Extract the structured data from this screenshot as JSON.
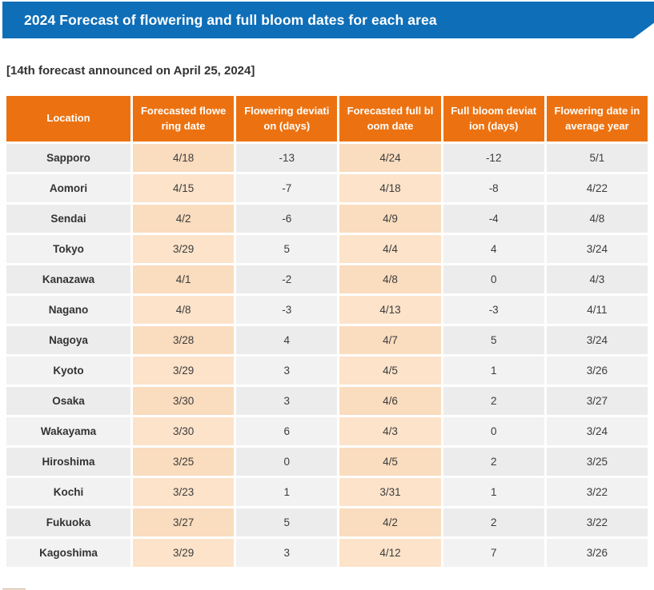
{
  "banner": {
    "title": "2024 Forecast of flowering and full bloom dates for each area",
    "bg_color": "#0e6eb8",
    "text_color": "#ffffff"
  },
  "subtitle": "[14th forecast announced on April 25, 2024]",
  "colors": {
    "header_orange": "#ec7211",
    "peach_cell": "#fbdfc2",
    "gray_cell_dark": "#ececec",
    "gray_cell_light": "#f2f2f2"
  },
  "table": {
    "columns": [
      "Location",
      "Forecasted flowering date",
      "Flowering deviation (days)",
      "Forecasted full bloom date",
      "Full bloom deviation (days)",
      "Flowering date in average year"
    ],
    "rows": [
      {
        "location": "Sapporo",
        "flowering_date": "4/18",
        "flowering_deviation": "-13",
        "full_bloom_date": "4/24",
        "full_bloom_deviation": "-12",
        "average_year_date": "5/1"
      },
      {
        "location": "Aomori",
        "flowering_date": "4/15",
        "flowering_deviation": "-7",
        "full_bloom_date": "4/18",
        "full_bloom_deviation": "-8",
        "average_year_date": "4/22"
      },
      {
        "location": "Sendai",
        "flowering_date": "4/2",
        "flowering_deviation": "-6",
        "full_bloom_date": "4/9",
        "full_bloom_deviation": "-4",
        "average_year_date": "4/8"
      },
      {
        "location": "Tokyo",
        "flowering_date": "3/29",
        "flowering_deviation": "5",
        "full_bloom_date": "4/4",
        "full_bloom_deviation": "4",
        "average_year_date": "3/24"
      },
      {
        "location": "Kanazawa",
        "flowering_date": "4/1",
        "flowering_deviation": "-2",
        "full_bloom_date": "4/8",
        "full_bloom_deviation": "0",
        "average_year_date": "4/3"
      },
      {
        "location": "Nagano",
        "flowering_date": "4/8",
        "flowering_deviation": "-3",
        "full_bloom_date": "4/13",
        "full_bloom_deviation": "-3",
        "average_year_date": "4/11"
      },
      {
        "location": "Nagoya",
        "flowering_date": "3/28",
        "flowering_deviation": "4",
        "full_bloom_date": "4/7",
        "full_bloom_deviation": "5",
        "average_year_date": "3/24"
      },
      {
        "location": "Kyoto",
        "flowering_date": "3/29",
        "flowering_deviation": "3",
        "full_bloom_date": "4/5",
        "full_bloom_deviation": "1",
        "average_year_date": "3/26"
      },
      {
        "location": "Osaka",
        "flowering_date": "3/30",
        "flowering_deviation": "3",
        "full_bloom_date": "4/6",
        "full_bloom_deviation": "2",
        "average_year_date": "3/27"
      },
      {
        "location": "Wakayama",
        "flowering_date": "3/30",
        "flowering_deviation": "6",
        "full_bloom_date": "4/3",
        "full_bloom_deviation": "0",
        "average_year_date": "3/24"
      },
      {
        "location": "Hiroshima",
        "flowering_date": "3/25",
        "flowering_deviation": "0",
        "full_bloom_date": "4/5",
        "full_bloom_deviation": "2",
        "average_year_date": "3/25"
      },
      {
        "location": "Kochi",
        "flowering_date": "3/23",
        "flowering_deviation": "1",
        "full_bloom_date": "3/31",
        "full_bloom_deviation": "1",
        "average_year_date": "3/22"
      },
      {
        "location": "Fukuoka",
        "flowering_date": "3/27",
        "flowering_deviation": "5",
        "full_bloom_date": "4/2",
        "full_bloom_deviation": "2",
        "average_year_date": "3/22"
      },
      {
        "location": "Kagoshima",
        "flowering_date": "3/29",
        "flowering_deviation": "3",
        "full_bloom_date": "4/12",
        "full_bloom_deviation": "7",
        "average_year_date": "3/26"
      }
    ]
  }
}
